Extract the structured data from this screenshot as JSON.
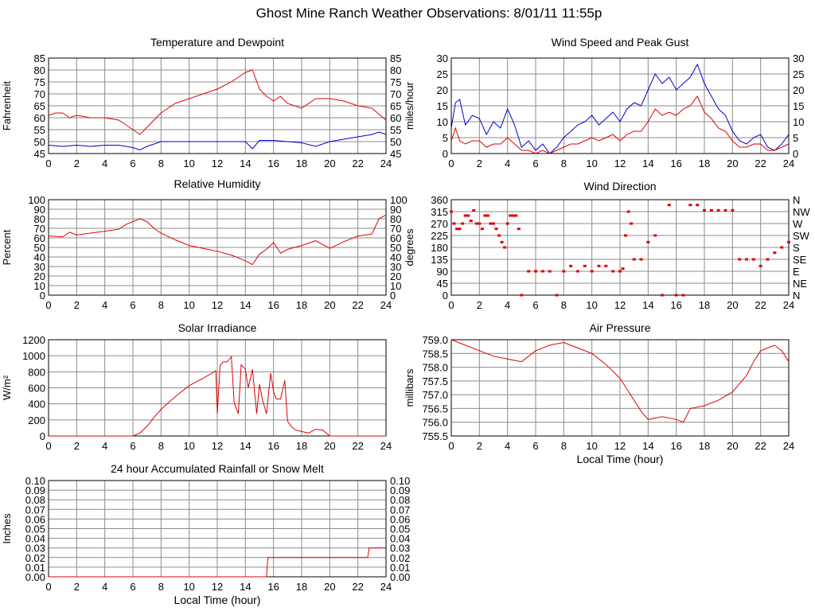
{
  "page_title": "Ghost Mine Ranch Weather Observations: 8/01/11 11:55p",
  "colors": {
    "grid": "#8c8c8c",
    "frame": "#000000",
    "red": "#e00000",
    "blue": "#0000cc",
    "background": "#ffffff"
  },
  "chart_data": [
    {
      "id": "temp",
      "type": "line",
      "title": "Temperature and Dewpoint",
      "ylabel": "Fahrenheit",
      "xlabel": "",
      "xlim": [
        0,
        24
      ],
      "ylim": [
        45,
        85
      ],
      "xticks": [
        "0",
        "2",
        "4",
        "6",
        "8",
        "10",
        "12",
        "14",
        "16",
        "18",
        "20",
        "22",
        "24"
      ],
      "yticks": [
        "45",
        "50",
        "55",
        "60",
        "65",
        "70",
        "75",
        "80",
        "85"
      ],
      "right_yticks": [
        "45",
        "50",
        "55",
        "60",
        "65",
        "70",
        "75",
        "80",
        "85"
      ],
      "grid": true,
      "series": [
        {
          "color": "red",
          "x": [
            0,
            0.5,
            1,
            1.5,
            2,
            3,
            4,
            5,
            5.5,
            6,
            6.5,
            7,
            7.5,
            8,
            9,
            10,
            11,
            12,
            13,
            13.5,
            14,
            14.5,
            15,
            15.5,
            16,
            16.5,
            17,
            18,
            19,
            20,
            21,
            22,
            23,
            24
          ],
          "y": [
            61,
            62,
            62,
            60,
            61,
            60,
            60,
            59,
            57,
            55,
            53,
            56,
            59,
            62,
            66,
            68,
            70,
            72,
            75,
            77,
            79,
            80,
            72,
            69,
            67,
            69,
            66,
            64,
            68,
            68,
            67,
            65,
            64,
            59
          ]
        },
        {
          "color": "blue",
          "x": [
            0,
            1,
            2,
            3,
            4,
            5,
            6,
            6.5,
            7,
            8,
            9,
            10,
            11,
            12,
            13,
            14,
            14.5,
            15,
            16,
            17,
            18,
            19,
            20,
            21,
            22,
            23,
            23.5,
            24
          ],
          "y": [
            48.5,
            48,
            48.5,
            48,
            48.5,
            48.5,
            47.5,
            46.5,
            48,
            50,
            50,
            50,
            50,
            50,
            50,
            50,
            47,
            50.5,
            50.5,
            50,
            49.5,
            48,
            50,
            51,
            52,
            53,
            54,
            53
          ]
        }
      ]
    },
    {
      "id": "wind",
      "type": "line",
      "title": "Wind Speed and Peak Gust",
      "ylabel": "miles/hour",
      "xlabel": "",
      "xlim": [
        0,
        24
      ],
      "ylim": [
        0,
        30
      ],
      "xticks": [
        "0",
        "2",
        "4",
        "6",
        "8",
        "10",
        "12",
        "14",
        "16",
        "18",
        "20",
        "22",
        "24"
      ],
      "yticks": [
        "0",
        "5",
        "10",
        "15",
        "20",
        "25",
        "30"
      ],
      "right_yticks": [
        "0",
        "5",
        "10",
        "15",
        "20",
        "25",
        "30"
      ],
      "grid": true,
      "series": [
        {
          "color": "blue",
          "x": [
            0,
            0.3,
            0.6,
            1,
            1.5,
            2,
            2.5,
            3,
            3.5,
            4,
            4.5,
            5,
            5.5,
            6,
            6.5,
            7,
            7.5,
            8,
            8.5,
            9,
            9.5,
            10,
            10.5,
            11,
            11.5,
            12,
            12.5,
            13,
            13.5,
            14,
            14.5,
            15,
            15.5,
            16,
            16.5,
            17,
            17.5,
            18,
            18.5,
            19,
            19.5,
            20,
            20.5,
            21,
            21.5,
            22,
            22.5,
            23,
            23.5,
            24
          ],
          "y": [
            8,
            16,
            17,
            9,
            12,
            11,
            6,
            10,
            8,
            14,
            9,
            2,
            4,
            1,
            3,
            0,
            2,
            5,
            7,
            9,
            10,
            12,
            9,
            11,
            13,
            10,
            14,
            16,
            15,
            20,
            25,
            22,
            24,
            20,
            22,
            24,
            28,
            22,
            18,
            14,
            12,
            7,
            4,
            3,
            5,
            6,
            2,
            1,
            3,
            6
          ]
        },
        {
          "color": "red",
          "x": [
            0,
            0.3,
            0.6,
            1,
            1.5,
            2,
            2.5,
            3,
            3.5,
            4,
            4.5,
            5,
            5.5,
            6,
            6.5,
            7,
            7.5,
            8,
            8.5,
            9,
            9.5,
            10,
            10.5,
            11,
            11.5,
            12,
            12.5,
            13,
            13.5,
            14,
            14.5,
            15,
            15.5,
            16,
            16.5,
            17,
            17.5,
            18,
            18.5,
            19,
            19.5,
            20,
            20.5,
            21,
            21.5,
            22,
            22.5,
            23,
            23.5,
            24
          ],
          "y": [
            4,
            8,
            4,
            3,
            4,
            4,
            2,
            3,
            3,
            5,
            3,
            1,
            1,
            0,
            1,
            0,
            1,
            2,
            3,
            3,
            4,
            5,
            4,
            5,
            6,
            4,
            6,
            7,
            7,
            10,
            14,
            12,
            13,
            12,
            14,
            15,
            18,
            13,
            11,
            8,
            7,
            4,
            2,
            2,
            3,
            3,
            1,
            1,
            2,
            3
          ]
        }
      ]
    },
    {
      "id": "humidity",
      "type": "line",
      "title": "Relative Humidity",
      "ylabel": "Percent",
      "xlabel": "",
      "xlim": [
        0,
        24
      ],
      "ylim": [
        0,
        100
      ],
      "xticks": [
        "0",
        "2",
        "4",
        "6",
        "8",
        "10",
        "12",
        "14",
        "16",
        "18",
        "20",
        "22",
        "24"
      ],
      "yticks": [
        "0",
        "10",
        "20",
        "30",
        "40",
        "50",
        "60",
        "70",
        "80",
        "90",
        "100"
      ],
      "right_yticks": [
        "0",
        "10",
        "20",
        "30",
        "40",
        "50",
        "60",
        "70",
        "80",
        "90",
        "100"
      ],
      "grid": true,
      "series": [
        {
          "color": "red",
          "x": [
            0,
            1,
            1.5,
            2,
            3,
            4,
            5,
            5.5,
            6,
            6.5,
            7,
            7.5,
            8,
            9,
            10,
            11,
            12,
            13,
            13.5,
            14,
            14.5,
            15,
            15.5,
            16,
            16.5,
            17,
            18,
            19,
            20,
            21,
            22,
            23,
            23.5,
            24
          ],
          "y": [
            62,
            61,
            66,
            63,
            65,
            67,
            69,
            74,
            77,
            80,
            77,
            70,
            65,
            58,
            52,
            49,
            46,
            42,
            39,
            36,
            32,
            43,
            48,
            55,
            44,
            48,
            52,
            57,
            49,
            56,
            62,
            64,
            80,
            84
          ]
        }
      ]
    },
    {
      "id": "direction",
      "type": "scatter",
      "title": "Wind Direction",
      "ylabel": "degrees",
      "xlabel": "",
      "xlim": [
        0,
        24
      ],
      "ylim": [
        0,
        360
      ],
      "xticks": [
        "0",
        "2",
        "4",
        "6",
        "8",
        "10",
        "12",
        "14",
        "16",
        "18",
        "20",
        "22",
        "24"
      ],
      "yticks": [
        "0",
        "45",
        "90",
        "135",
        "180",
        "225",
        "270",
        "315",
        "360"
      ],
      "right_yticks": [
        "N",
        "NE",
        "E",
        "SE",
        "S",
        "SW",
        "W",
        "NW",
        "N"
      ],
      "grid": true,
      "series": [
        {
          "color": "red",
          "x": [
            0,
            0.2,
            0.4,
            0.6,
            0.8,
            1.0,
            1.2,
            1.4,
            1.6,
            1.8,
            2.0,
            2.2,
            2.4,
            2.6,
            2.8,
            3.0,
            3.2,
            3.4,
            3.6,
            3.8,
            4.0,
            4.2,
            4.4,
            4.6,
            4.8,
            5.0,
            5.5,
            6.0,
            6.5,
            7.0,
            7.5,
            8.0,
            8.5,
            9.0,
            9.5,
            10.0,
            10.5,
            11.0,
            11.5,
            12.0,
            12.2,
            12.4,
            12.6,
            12.8,
            13.0,
            13.5,
            14.0,
            14.5,
            15.0,
            15.5,
            16.0,
            16.5,
            17.0,
            17.5,
            18.0,
            18.5,
            19.0,
            19.5,
            20.0,
            20.5,
            21.0,
            21.5,
            22.0,
            22.5,
            23.0,
            23.5,
            24.0
          ],
          "y": [
            315,
            270,
            250,
            250,
            270,
            300,
            300,
            280,
            320,
            270,
            270,
            250,
            300,
            300,
            270,
            270,
            250,
            225,
            200,
            180,
            270,
            300,
            300,
            300,
            250,
            0,
            90,
            90,
            90,
            90,
            0,
            90,
            110,
            90,
            110,
            90,
            110,
            110,
            90,
            90,
            100,
            225,
            315,
            270,
            135,
            135,
            200,
            225,
            0,
            340,
            0,
            0,
            340,
            340,
            320,
            320,
            320,
            320,
            320,
            135,
            135,
            135,
            110,
            135,
            160,
            180,
            200
          ]
        }
      ]
    },
    {
      "id": "solar",
      "type": "line",
      "title": "Solar Irradiance",
      "ylabel": "W/m²",
      "xlabel": "",
      "xlim": [
        0,
        24
      ],
      "ylim": [
        0,
        1300
      ],
      "xticks": [
        "0",
        "2",
        "4",
        "6",
        "8",
        "10",
        "12",
        "14",
        "16",
        "18",
        "20",
        "22",
        "24"
      ],
      "yticks": [
        "0",
        "200",
        "400",
        "600",
        "800",
        "1000",
        "1200"
      ],
      "right_yticks": [],
      "grid": true,
      "series": [
        {
          "color": "red",
          "x": [
            0,
            6,
            6.5,
            7,
            7.5,
            8,
            9,
            10,
            11,
            11.9,
            12.0,
            12.2,
            12.4,
            12.7,
            13,
            13.2,
            13.5,
            13.7,
            14,
            14.2,
            14.5,
            14.8,
            15,
            15.2,
            15.5,
            15.8,
            16,
            16.2,
            16.5,
            16.8,
            17,
            17.3,
            17.6,
            18,
            18.5,
            19,
            19.5,
            20,
            24
          ],
          "y": [
            0,
            0,
            40,
            130,
            250,
            360,
            530,
            680,
            780,
            880,
            300,
            950,
            1000,
            1000,
            1070,
            450,
            300,
            960,
            900,
            650,
            900,
            300,
            700,
            500,
            300,
            850,
            600,
            500,
            500,
            750,
            200,
            120,
            80,
            60,
            40,
            90,
            80,
            0,
            0
          ]
        }
      ]
    },
    {
      "id": "pressure",
      "type": "line",
      "title": "Air Pressure",
      "ylabel": "millibars",
      "xlabel": "Local Time (hour)",
      "xlim": [
        0,
        24
      ],
      "ylim": [
        755.5,
        759.0
      ],
      "xticks": [
        "0",
        "2",
        "4",
        "6",
        "8",
        "10",
        "12",
        "14",
        "16",
        "18",
        "20",
        "22",
        "24"
      ],
      "yticks": [
        "755.5",
        "756.0",
        "756.5",
        "757.0",
        "757.5",
        "758.0",
        "758.5",
        "759.0"
      ],
      "right_yticks": [],
      "grid": true,
      "series": [
        {
          "color": "red",
          "x": [
            0,
            1,
            2,
            3,
            4,
            5,
            6,
            7,
            8,
            9,
            10,
            11,
            12,
            13,
            13.5,
            14,
            15,
            16,
            16.5,
            17,
            18,
            19,
            20,
            21,
            21.5,
            22,
            22.5,
            23,
            23.5,
            24
          ],
          "y": [
            759.0,
            758.8,
            758.6,
            758.4,
            758.3,
            758.2,
            758.6,
            758.8,
            758.9,
            758.7,
            758.5,
            758.1,
            757.6,
            756.8,
            756.4,
            756.1,
            756.2,
            756.1,
            756.0,
            756.5,
            756.6,
            756.8,
            757.1,
            757.7,
            758.2,
            758.6,
            758.7,
            758.8,
            758.6,
            758.2
          ]
        }
      ]
    },
    {
      "id": "rain",
      "type": "line",
      "title": "24 hour Accumulated Rainfall or Snow Melt",
      "ylabel": "Inches",
      "xlabel": "Local Time (hour)",
      "xlim": [
        0,
        24
      ],
      "ylim": [
        0,
        0.1
      ],
      "xticks": [
        "0",
        "2",
        "4",
        "6",
        "8",
        "10",
        "12",
        "14",
        "16",
        "18",
        "20",
        "22",
        "24"
      ],
      "yticks": [
        "0.00",
        "0.01",
        "0.02",
        "0.03",
        "0.04",
        "0.05",
        "0.06",
        "0.07",
        "0.08",
        "0.09",
        "0.10"
      ],
      "right_yticks": [
        "0.00",
        "0.01",
        "0.02",
        "0.03",
        "0.04",
        "0.05",
        "0.06",
        "0.07",
        "0.08",
        "0.09",
        "0.10"
      ],
      "grid": true,
      "series": [
        {
          "color": "red",
          "x": [
            0,
            15.5,
            15.6,
            22.7,
            22.8,
            24
          ],
          "y": [
            0,
            0,
            0.02,
            0.02,
            0.03,
            0.03
          ]
        }
      ]
    }
  ]
}
